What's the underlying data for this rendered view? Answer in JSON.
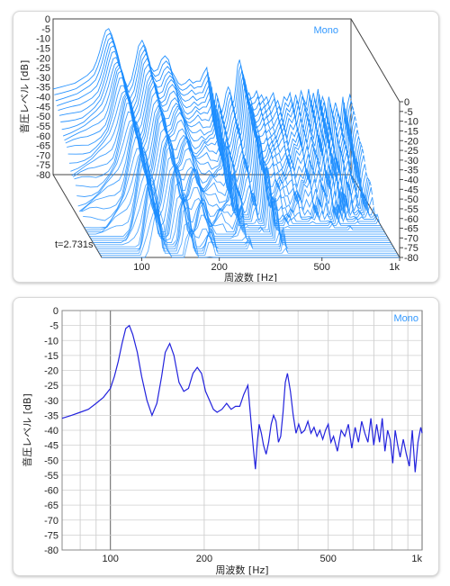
{
  "waterfall": {
    "mono_label": "Mono",
    "time_label": "t=2.731s",
    "ylabel": "音圧レベル [dB]",
    "xlabel": "周波数 [Hz]",
    "y_ticks": [
      "0",
      "-5",
      "-10",
      "-15",
      "-20",
      "-25",
      "-30",
      "-35",
      "-40",
      "-45",
      "-50",
      "-55",
      "-60",
      "-65",
      "-70",
      "-75",
      "-80"
    ],
    "x_ticks": [
      "100",
      "200",
      "500",
      "1k"
    ],
    "line_color": "#1a8cff"
  },
  "chart_data": [
    {
      "type": "line",
      "title": "",
      "xlabel": "周波数 [Hz]",
      "ylabel": "音圧レベル [dB]",
      "legend": "Mono",
      "x_scale": "log",
      "xlim": [
        70,
        1000
      ],
      "ylim": [
        -80,
        0
      ],
      "grid": true,
      "x_ticks": [
        "100",
        "200",
        "500",
        "1k"
      ],
      "y_ticks": [
        "0",
        "-5",
        "-10",
        "-15",
        "-20",
        "-25",
        "-30",
        "-35",
        "-40",
        "-45",
        "-50",
        "-55",
        "-60",
        "-65",
        "-70",
        "-75",
        "-80"
      ],
      "color": "#2222dd",
      "series": [
        {
          "x": [
            70,
            75,
            80,
            85,
            90,
            95,
            100,
            103,
            106,
            109,
            112,
            115,
            118,
            122,
            126,
            131,
            136,
            141,
            146,
            150,
            155,
            160,
            166,
            172,
            178,
            184,
            190,
            196,
            202,
            208,
            214,
            220,
            228,
            236,
            244,
            252,
            260,
            268,
            276,
            282,
            288,
            292,
            296,
            300,
            305,
            310,
            316,
            322,
            328,
            334,
            340,
            346,
            352,
            358,
            364,
            370,
            378,
            386,
            394,
            402,
            410,
            420,
            430,
            440,
            450,
            460,
            470,
            480,
            490,
            500,
            510,
            520,
            535,
            550,
            565,
            580,
            595,
            610,
            625,
            640,
            655,
            670,
            685,
            700,
            715,
            730,
            745,
            760,
            775,
            790,
            805,
            820,
            835,
            850,
            870,
            890,
            910,
            930,
            950,
            970,
            990,
            1000
          ],
          "y": [
            -36,
            -35,
            -34,
            -33,
            -31,
            -29,
            -26,
            -22,
            -17,
            -11,
            -6,
            -5,
            -8,
            -14,
            -22,
            -30,
            -35,
            -31,
            -22,
            -14,
            -11,
            -15,
            -24,
            -27,
            -26,
            -21,
            -19,
            -21,
            -27,
            -30,
            -33,
            -34,
            -33,
            -31,
            -33,
            -32,
            -32,
            -28,
            -25,
            -36,
            -47,
            -53,
            -44,
            -38,
            -41,
            -45,
            -48,
            -44,
            -38,
            -35,
            -37,
            -44,
            -42,
            -34,
            -24,
            -21,
            -27,
            -35,
            -41,
            -38,
            -41,
            -40,
            -37,
            -41,
            -39,
            -42,
            -40,
            -43,
            -40,
            -38,
            -44,
            -42,
            -47,
            -40,
            -42,
            -38,
            -46,
            -39,
            -44,
            -37,
            -41,
            -44,
            -36,
            -45,
            -38,
            -44,
            -36,
            -47,
            -40,
            -43,
            -51,
            -40,
            -45,
            -49,
            -43,
            -48,
            -52,
            -40,
            -54,
            -44,
            -39,
            -41
          ]
        }
      ]
    }
  ]
}
